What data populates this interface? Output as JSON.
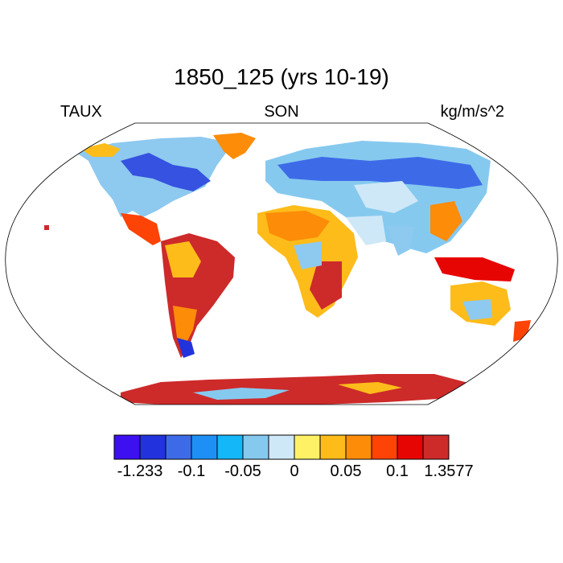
{
  "title": "1850_125 (yrs 10-19)",
  "left_label": "TAUX",
  "center_label": "SON",
  "right_label": "kg/m/s^2",
  "colorbar": {
    "colors": [
      "#3d10f0",
      "#2233dd",
      "#3d6be8",
      "#1e90f5",
      "#14b7f8",
      "#86c9ef",
      "#cfe8f7",
      "#fef166",
      "#fdbc1a",
      "#fd8c08",
      "#fd4306",
      "#e70504",
      "#cd2a2a"
    ],
    "tick_labels": [
      "-1.233",
      "-0.1",
      "-0.05",
      "0",
      "0.05",
      "0.1",
      "1.3577"
    ]
  }
}
